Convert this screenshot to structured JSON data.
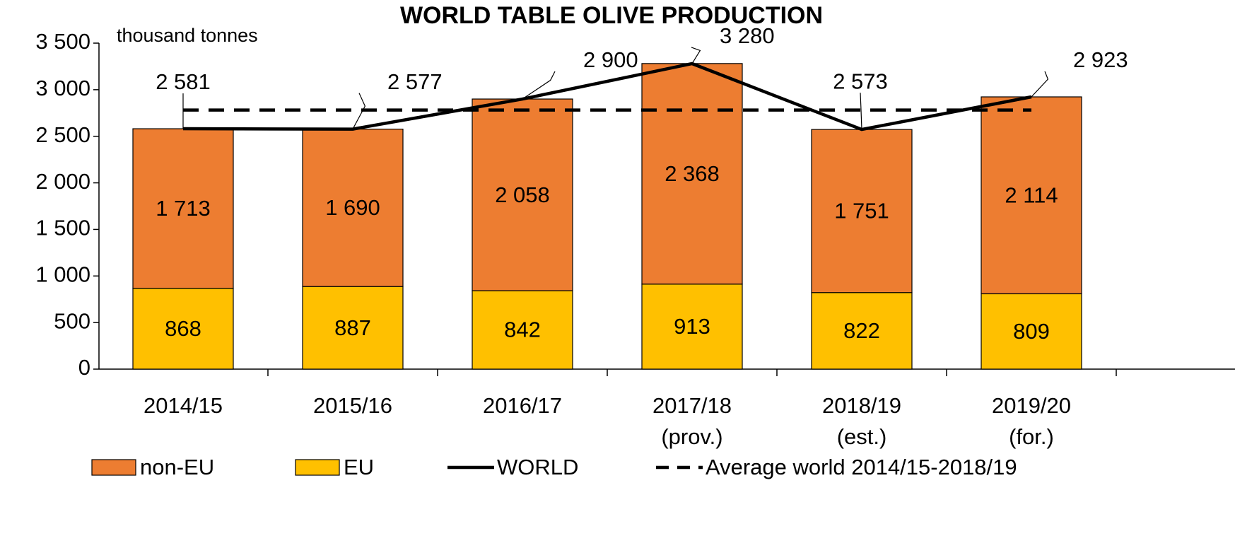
{
  "chart_data": {
    "type": "bar",
    "title": "WORLD TABLE OLIVE PRODUCTION",
    "y_label": "thousand tonnes",
    "categories": [
      "2014/15",
      "2015/16",
      "2016/17",
      "2017/18\n(prov.)",
      "2018/19\n(est.)",
      "2019/20\n(for.)"
    ],
    "stacked": true,
    "series": [
      {
        "name": "non-EU",
        "type": "bar",
        "color": "#ed7d31",
        "values": [
          1713,
          1690,
          2058,
          2368,
          1751,
          2114
        ],
        "value_labels": [
          "1 713",
          "1 690",
          "2 058",
          "2 368",
          "1 751",
          "2 114"
        ]
      },
      {
        "name": "EU",
        "type": "bar",
        "color": "#ffc000",
        "values": [
          868,
          887,
          842,
          913,
          822,
          809
        ]
      },
      {
        "name": "WORLD",
        "type": "line",
        "color": "#000000",
        "values": [
          2581,
          2577,
          2900,
          3280,
          2573,
          2923
        ],
        "value_labels": [
          "2 581",
          "2 577",
          "2 900",
          "3 280",
          "2 573",
          "2 923"
        ]
      },
      {
        "name": "Average world 2014/15-2018/19",
        "type": "line",
        "dashed": true,
        "color": "#000000",
        "values": [
          2782,
          2782,
          2782,
          2782,
          2782,
          2782
        ]
      }
    ],
    "ylim": [
      0,
      3500
    ],
    "yticks": [
      0,
      500,
      {
        "value": 1000,
        "label": "1 000"
      },
      {
        "value": 1500,
        "label": "1 500"
      },
      {
        "value": 2000,
        "label": "2 000"
      },
      {
        "value": 2500,
        "label": "2 500"
      },
      {
        "value": 3000,
        "label": "3 000"
      },
      {
        "value": 3500,
        "label": "3 500"
      }
    ],
    "grid": false,
    "legend": "bottom"
  }
}
